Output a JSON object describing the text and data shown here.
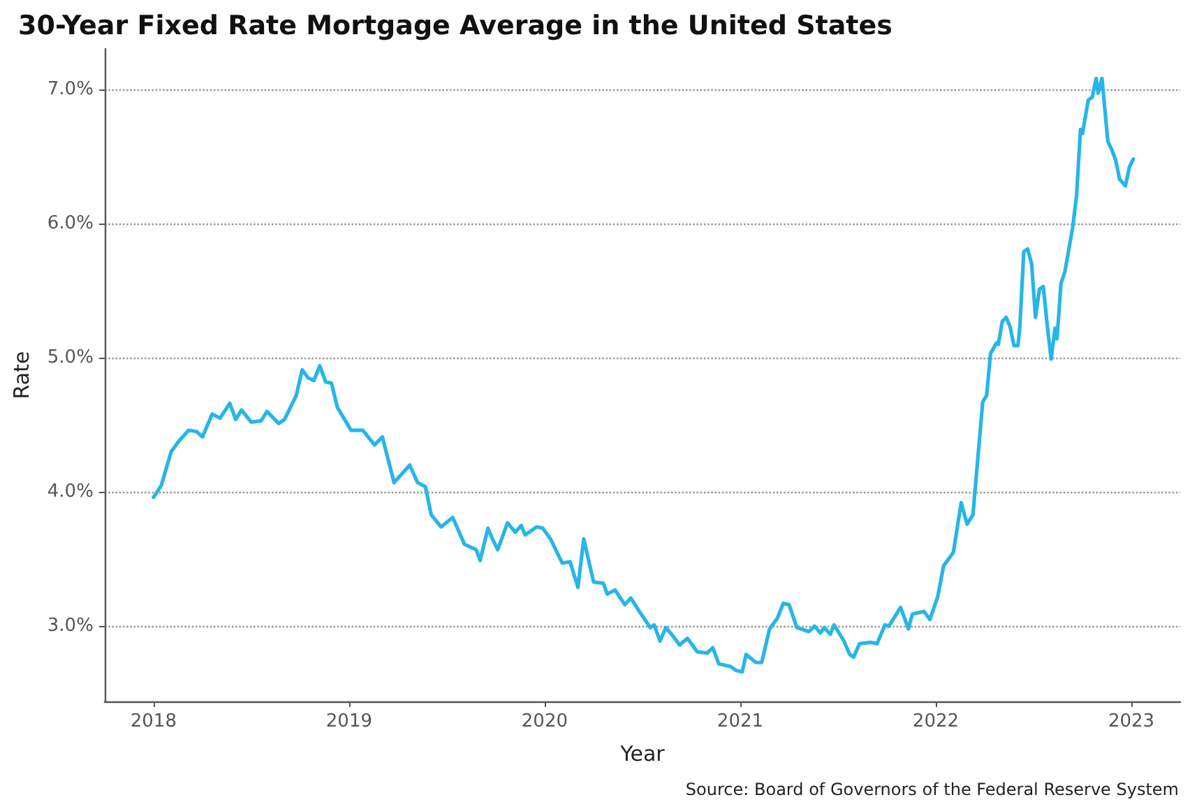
{
  "chart_data": {
    "type": "line",
    "title": "30-Year Fixed Rate Mortgage Average in the United States",
    "xlabel": "Year",
    "ylabel": "Rate",
    "annotations": [
      "Source: Board of Governors of the Federal Reserve System"
    ],
    "xlim": [
      2017.75,
      2023.25
    ],
    "xticks": [
      2018,
      2019,
      2020,
      2021,
      2022,
      2023
    ],
    "ylim": [
      2.44,
      7.3
    ],
    "yticks": [
      {
        "value": 3,
        "label": "3.0%"
      },
      {
        "value": 4,
        "label": "4.0%"
      },
      {
        "value": 5,
        "label": "5.0%"
      },
      {
        "value": 6,
        "label": "6.0%"
      },
      {
        "value": 7,
        "label": "7.0%"
      }
    ],
    "grid": "y",
    "marker": "none",
    "line_style": "solid",
    "x": [
      2018.0,
      2018.04,
      2018.09,
      2018.13,
      2018.18,
      2018.22,
      2018.25,
      2018.3,
      2018.34,
      2018.39,
      2018.42,
      2018.45,
      2018.5,
      2018.55,
      2018.58,
      2018.64,
      2018.67,
      2018.73,
      2018.76,
      2018.79,
      2018.82,
      2018.85,
      2018.88,
      2018.91,
      2018.94,
      2019.01,
      2019.07,
      2019.13,
      2019.17,
      2019.23,
      2019.31,
      2019.35,
      2019.39,
      2019.42,
      2019.47,
      2019.53,
      2019.59,
      2019.65,
      2019.67,
      2019.71,
      2019.73,
      2019.76,
      2019.81,
      2019.85,
      2019.88,
      2019.9,
      2019.96,
      2019.99,
      2020.03,
      2020.09,
      2020.13,
      2020.17,
      2020.2,
      2020.25,
      2020.3,
      2020.32,
      2020.36,
      2020.41,
      2020.44,
      2020.48,
      2020.54,
      2020.56,
      2020.59,
      2020.62,
      2020.66,
      2020.69,
      2020.73,
      2020.78,
      2020.83,
      2020.86,
      2020.89,
      2020.95,
      2020.98,
      2021.01,
      2021.03,
      2021.08,
      2021.11,
      2021.15,
      2021.19,
      2021.22,
      2021.25,
      2021.29,
      2021.35,
      2021.38,
      2021.41,
      2021.43,
      2021.46,
      2021.48,
      2021.53,
      2021.56,
      2021.58,
      2021.61,
      2021.67,
      2021.7,
      2021.74,
      2021.76,
      2021.82,
      2021.86,
      2021.88,
      2021.94,
      2021.97,
      2022.01,
      2022.04,
      2022.09,
      2022.13,
      2022.16,
      2022.19,
      2022.24,
      2022.26,
      2022.28,
      2022.31,
      2022.32,
      2022.34,
      2022.36,
      2022.38,
      2022.4,
      2022.42,
      2022.43,
      2022.45,
      2022.47,
      2022.49,
      2022.51,
      2022.53,
      2022.55,
      2022.57,
      2022.59,
      2022.61,
      2022.62,
      2022.64,
      2022.66,
      2022.7,
      2022.72,
      2022.74,
      2022.75,
      2022.78,
      2022.8,
      2022.82,
      2022.83,
      2022.85,
      2022.86,
      2022.88,
      2022.9,
      2022.92,
      2022.94,
      2022.97,
      2022.99,
      2023.01
    ],
    "series": [
      {
        "color": "#27b5e8",
        "values": [
          3.96,
          4.05,
          4.3,
          4.38,
          4.46,
          4.45,
          4.41,
          4.58,
          4.55,
          4.66,
          4.54,
          4.61,
          4.52,
          4.53,
          4.6,
          4.51,
          4.54,
          4.72,
          4.91,
          4.85,
          4.83,
          4.94,
          4.82,
          4.81,
          4.63,
          4.46,
          4.46,
          4.35,
          4.41,
          4.07,
          4.2,
          4.07,
          4.04,
          3.83,
          3.74,
          3.81,
          3.61,
          3.57,
          3.49,
          3.73,
          3.66,
          3.57,
          3.77,
          3.7,
          3.75,
          3.68,
          3.74,
          3.73,
          3.65,
          3.47,
          3.48,
          3.29,
          3.65,
          3.33,
          3.32,
          3.24,
          3.27,
          3.16,
          3.21,
          3.12,
          2.99,
          3.01,
          2.89,
          2.99,
          2.92,
          2.86,
          2.91,
          2.81,
          2.8,
          2.84,
          2.72,
          2.7,
          2.67,
          2.66,
          2.79,
          2.73,
          2.73,
          2.98,
          3.06,
          3.17,
          3.16,
          2.99,
          2.96,
          3.0,
          2.95,
          2.99,
          2.94,
          3.01,
          2.89,
          2.79,
          2.77,
          2.87,
          2.88,
          2.87,
          3.01,
          3.0,
          3.14,
          2.98,
          3.09,
          3.11,
          3.05,
          3.22,
          3.45,
          3.55,
          3.92,
          3.76,
          3.83,
          4.67,
          4.72,
          5.03,
          5.11,
          5.1,
          5.27,
          5.3,
          5.23,
          5.09,
          5.09,
          5.23,
          5.79,
          5.81,
          5.7,
          5.3,
          5.51,
          5.53,
          5.24,
          4.99,
          5.22,
          5.14,
          5.55,
          5.64,
          5.97,
          6.21,
          6.7,
          6.67,
          6.92,
          6.94,
          7.08,
          6.97,
          7.08,
          6.92,
          6.61,
          6.55,
          6.47,
          6.33,
          6.28,
          6.42,
          6.48
        ]
      }
    ]
  }
}
